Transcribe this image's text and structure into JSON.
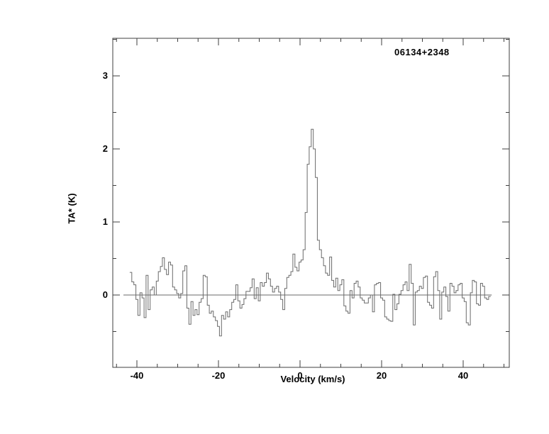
{
  "chart": {
    "source_label": "06134+2348",
    "xlabel": "Velocity (km/s)",
    "ylabel": "TA* (K)",
    "colors": {
      "background": "#ffffff",
      "axis": "#3f3f3f",
      "data_line": "#6a6a6a",
      "text": "#000000"
    }
  },
  "chart_data": {
    "type": "line",
    "style": "histogram-step",
    "title": "06134+2348",
    "xlabel": "Velocity (km/s)",
    "ylabel": "TA* (K)",
    "legend": "none",
    "grid": false,
    "xlim": [
      -45.9,
      51.3
    ],
    "ylim": [
      -0.99,
      3.52
    ],
    "x_major_ticks": [
      -40,
      -20,
      0,
      20,
      40
    ],
    "x_minor_ticks": [
      -45,
      -35,
      -30,
      -25,
      -15,
      -10,
      -5,
      5,
      10,
      15,
      25,
      30,
      35,
      45,
      50
    ],
    "y_major_ticks": [
      0,
      1,
      2,
      3
    ],
    "y_minor_ticks": [
      -0.5,
      0.5,
      1.5,
      2.5,
      3.5
    ],
    "baseline_y": 0,
    "baseline_x_range": [
      -43.3,
      47.0
    ],
    "channel_width": 0.5,
    "peak": {
      "velocity": 3.0,
      "ta_k": 2.27
    },
    "x_start": -41.5,
    "x_step": 0.5,
    "values": [
      0.31,
      0.18,
      0.14,
      -0.06,
      -0.28,
      0.03,
      -0.04,
      -0.31,
      0.27,
      -0.2,
      0.07,
      0.11,
      0.0,
      0.19,
      0.32,
      0.39,
      0.51,
      0.35,
      0.28,
      0.45,
      0.41,
      0.11,
      0.07,
      0.02,
      -0.04,
      0.02,
      0.33,
      0.4,
      -0.18,
      -0.4,
      -0.09,
      -0.28,
      -0.2,
      -0.27,
      -0.1,
      -0.05,
      0.27,
      0.25,
      -0.14,
      -0.25,
      -0.22,
      -0.3,
      -0.35,
      -0.43,
      -0.56,
      -0.28,
      -0.33,
      -0.23,
      -0.3,
      -0.2,
      -0.1,
      -0.06,
      0.14,
      -0.08,
      -0.18,
      -0.13,
      -0.05,
      0.05,
      0.05,
      0.1,
      0.22,
      -0.05,
      0.1,
      -0.08,
      0.17,
      0.12,
      0.17,
      0.3,
      0.22,
      0.12,
      0.04,
      0.09,
      0.12,
      0.04,
      -0.06,
      -0.2,
      0.09,
      0.24,
      0.27,
      0.32,
      0.56,
      0.38,
      0.33,
      0.45,
      0.48,
      0.62,
      1.13,
      1.79,
      2.03,
      2.27,
      2.0,
      1.61,
      0.75,
      0.62,
      0.51,
      0.4,
      0.3,
      0.27,
      0.52,
      0.2,
      0.11,
      0.23,
      0.06,
      0.14,
      0.21,
      -0.15,
      -0.22,
      -0.25,
      0.06,
      -0.04,
      0.16,
      0.19,
      0.11,
      -0.04,
      -0.07,
      -0.11,
      -0.11,
      -0.04,
      0.0,
      -0.23,
      0.14,
      0.16,
      0.17,
      -0.04,
      -0.07,
      -0.3,
      -0.33,
      -0.35,
      -0.36,
      0.01,
      -0.2,
      -0.12,
      0.01,
      0.06,
      0.14,
      0.18,
      0.06,
      0.42,
      0.16,
      -0.41,
      0.04,
      0.06,
      0.12,
      0.09,
      0.24,
      0.26,
      -0.1,
      -0.14,
      -0.18,
      0.25,
      0.32,
      0.06,
      -0.33,
      0.04,
      0.11,
      -0.02,
      -0.22,
      0.16,
      0.12,
      0.03,
      0.06,
      0.14,
      0.16,
      -0.04,
      -0.09,
      -0.38,
      -0.41,
      0.03,
      0.2,
      0.18,
      -0.12,
      -0.14,
      0.16,
      0.12,
      -0.04,
      -0.06,
      -0.02
    ]
  }
}
